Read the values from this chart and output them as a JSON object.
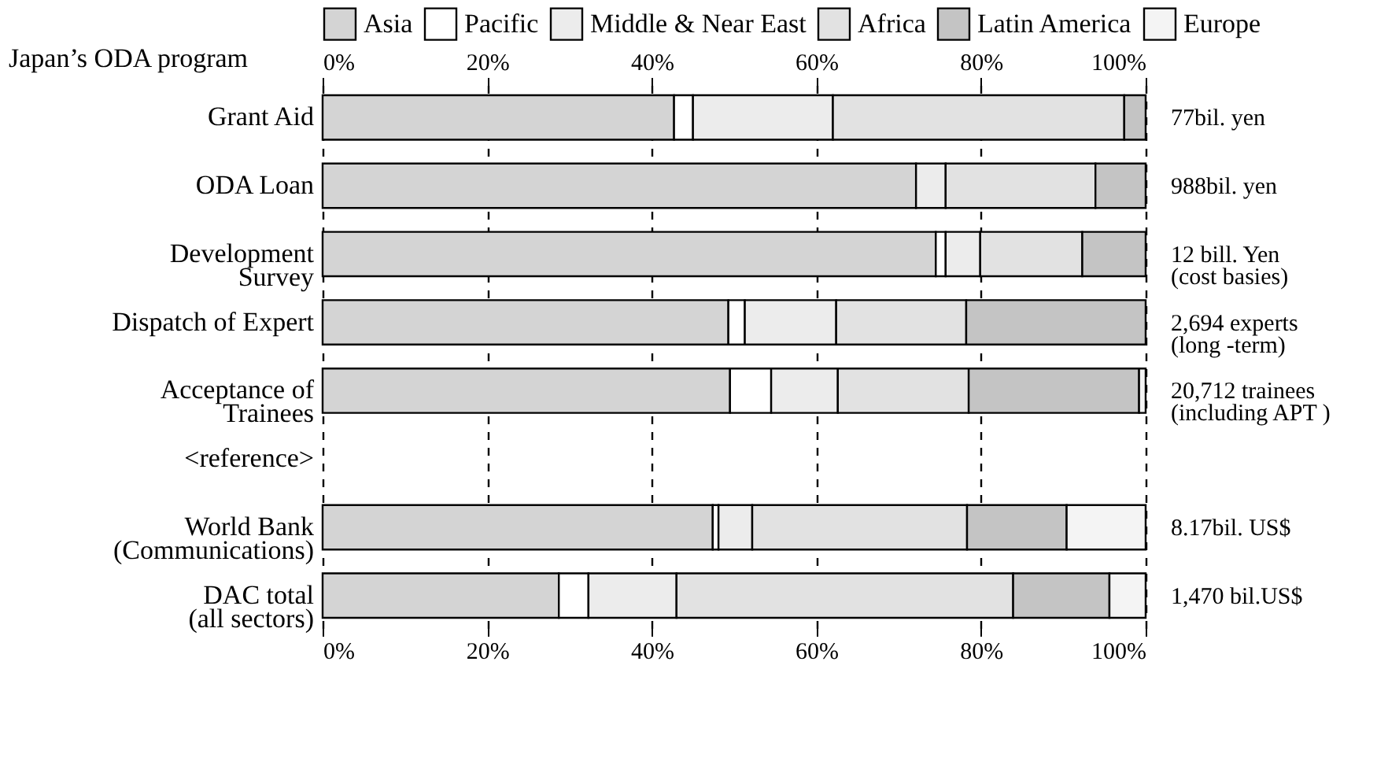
{
  "chart_data": {
    "type": "bar",
    "orientation": "horizontal",
    "stacked": true,
    "ylabel": "Japan’s ODA program",
    "categories": [
      "Grant Aid",
      "ODA Loan",
      "Development\nSurvey",
      "Dispatch of Expert",
      "Acceptance of\nTrainees",
      "<reference>",
      "World Bank\n(Communications)",
      "DAC total\n(all sectors)"
    ],
    "series": [
      {
        "name": "Asia",
        "color": "#d4d4d4",
        "values": [
          42.7,
          72.1,
          74.5,
          49.3,
          49.5,
          null,
          47.4,
          28.7
        ]
      },
      {
        "name": "Pacific",
        "color": "#ffffff",
        "values": [
          2.3,
          0,
          1.2,
          2.0,
          5.0,
          null,
          0.7,
          3.6
        ]
      },
      {
        "name": "Middle & Near East",
        "color": "#ececec",
        "values": [
          17.0,
          3.6,
          4.2,
          11.1,
          8.1,
          null,
          4.1,
          10.7
        ]
      },
      {
        "name": "Africa",
        "color": "#e2e2e2",
        "values": [
          35.4,
          18.2,
          12.4,
          15.8,
          15.9,
          null,
          26.1,
          40.9
        ]
      },
      {
        "name": "Latin America",
        "color": "#c4c4c4",
        "values": [
          2.6,
          6.1,
          7.7,
          21.8,
          20.7,
          null,
          12.1,
          11.7
        ]
      },
      {
        "name": "Europe",
        "color": "#f4f4f4",
        "values": [
          0,
          0,
          0,
          0,
          0.8,
          null,
          9.6,
          4.4
        ]
      }
    ],
    "xlim": [
      0,
      100
    ],
    "xticks": [
      {
        "value": 0,
        "label": "0%"
      },
      {
        "value": 20,
        "label": "20%"
      },
      {
        "value": 40,
        "label": "40%"
      },
      {
        "value": 60,
        "label": "60%"
      },
      {
        "value": 80,
        "label": "80%"
      },
      {
        "value": 100,
        "label": "100%"
      }
    ],
    "x2lim": [
      0,
      100
    ],
    "x2ticks": [
      {
        "value": 0,
        "label": "0%"
      },
      {
        "value": 20,
        "label": "20%"
      },
      {
        "value": 40,
        "label": "40%"
      },
      {
        "value": 60,
        "label": "60%"
      },
      {
        "value": 80,
        "label": "80%"
      },
      {
        "value": 100,
        "label": "100%"
      }
    ],
    "grid": "x",
    "legend": "top",
    "annotations": [
      "77bil. yen",
      "988bil. yen",
      "12 bill. Yen\n(cost basies)",
      "2,694 experts\n(long -term)",
      "20,712 trainees\n(including APT )",
      "8.17bil. US$",
      "1,470 bil.US$"
    ]
  }
}
